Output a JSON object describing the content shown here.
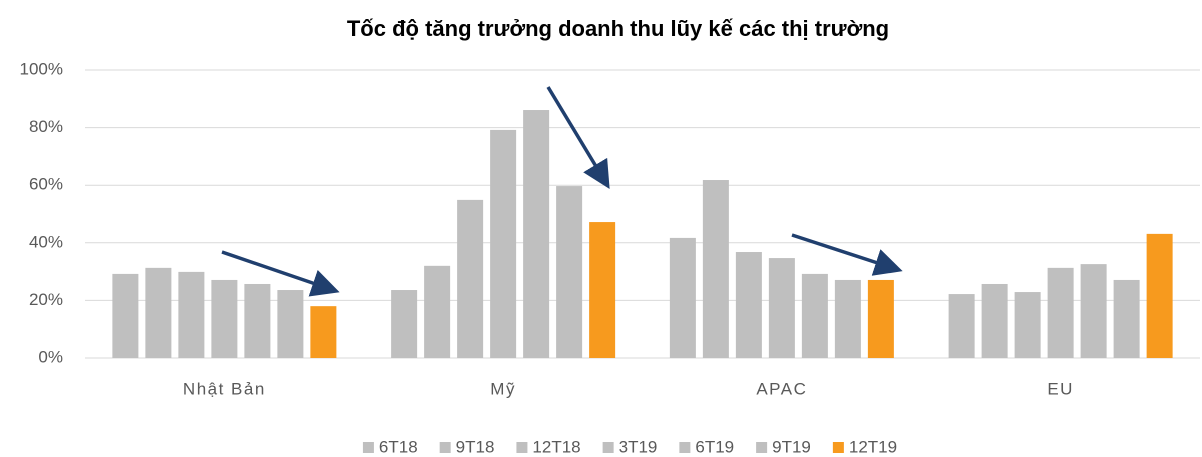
{
  "chart_data": {
    "type": "bar",
    "title": "Tốc độ tăng trưởng doanh thu lũy kế các thị trường",
    "categories": [
      "Nhật Bản",
      "Mỹ",
      "APAC",
      "EU"
    ],
    "series": [
      {
        "name": "6T18",
        "color": "#bfbfbf",
        "values": [
          29.2,
          23.6,
          41.7,
          22.2
        ]
      },
      {
        "name": "9T18",
        "color": "#bfbfbf",
        "values": [
          31.3,
          32.0,
          61.8,
          25.7
        ]
      },
      {
        "name": "12T18",
        "color": "#bfbfbf",
        "values": [
          29.9,
          54.9,
          36.8,
          22.9
        ]
      },
      {
        "name": "3T19",
        "color": "#bfbfbf",
        "values": [
          27.1,
          79.2,
          34.7,
          31.3
        ]
      },
      {
        "name": "6T19",
        "color": "#bfbfbf",
        "values": [
          25.7,
          86.1,
          29.2,
          32.6
        ]
      },
      {
        "name": "9T19",
        "color": "#bfbfbf",
        "values": [
          23.6,
          59.7,
          27.1,
          27.1
        ]
      },
      {
        "name": "12T19",
        "color": "#f79a1e",
        "values": [
          18.0,
          47.2,
          27.1,
          43.1
        ]
      }
    ],
    "ylim": [
      0,
      100
    ],
    "yticks": [
      {
        "value": 0,
        "label": "0%"
      },
      {
        "value": 20,
        "label": "20%"
      },
      {
        "value": 40,
        "label": "40%"
      },
      {
        "value": 60,
        "label": "60%"
      },
      {
        "value": 80,
        "label": "80%"
      },
      {
        "value": 100,
        "label": "100%"
      }
    ],
    "grid": true,
    "legend": "bottom"
  }
}
